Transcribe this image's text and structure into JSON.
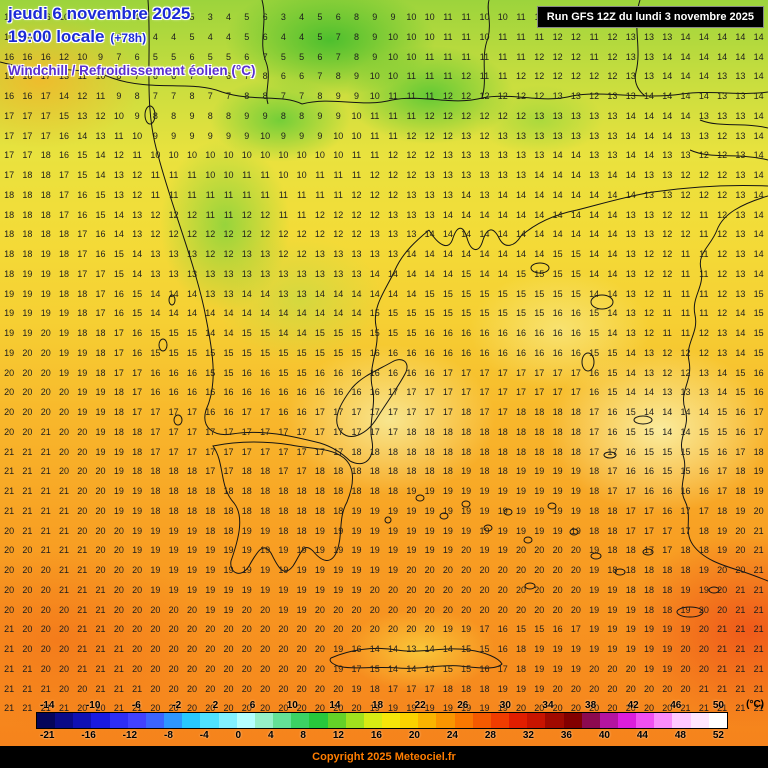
{
  "header": {
    "date_line": "jeudi 6 novembre 2025",
    "time_line": "19:00 locale",
    "run_offset": "(+78h)",
    "param_label": "Windchill / Refroidissement éolien (°C)"
  },
  "run_box": {
    "text": "Run GFS 12Z du lundi 3 novembre 2025"
  },
  "footer": {
    "copyright": "Copyright 2025 Meteociel.fr"
  },
  "color_scale": {
    "unit": "(°C)",
    "top_labels": [
      "-14",
      "-10",
      "-6",
      "-2",
      "2",
      "6",
      "10",
      "14",
      "18",
      "22",
      "26",
      "30",
      "34",
      "38",
      "42",
      "46",
      "50"
    ],
    "bottom_labels": [
      "-21",
      "-16",
      "-12",
      "-8",
      "-4",
      "0",
      "4",
      "8",
      "12",
      "16",
      "20",
      "24",
      "28",
      "32",
      "36",
      "40",
      "44",
      "48",
      "52"
    ],
    "colors": [
      "#05055a",
      "#0a0a87",
      "#1010b4",
      "#1a1ae1",
      "#2e2ef5",
      "#4242ff",
      "#3c64ff",
      "#2e96ff",
      "#28c8ff",
      "#50e1ff",
      "#82f0ff",
      "#b4ffff",
      "#96f0c8",
      "#64e196",
      "#3cd264",
      "#28c83c",
      "#64d228",
      "#a0e11e",
      "#d7eb14",
      "#f5e60a",
      "#fad200",
      "#fab400",
      "#fa9600",
      "#fa7800",
      "#f55a00",
      "#f03c00",
      "#e11e00",
      "#c81400",
      "#a00a00",
      "#820000",
      "#8c0a50",
      "#b414a0",
      "#dc1edc",
      "#f050f0",
      "#fa8cfa",
      "#ffc8ff",
      "#ffe6ff",
      "#ffffff"
    ]
  },
  "chart_data": {
    "type": "heatmap",
    "title": "Windchill / Refroidissement éolien (°C)",
    "unit": "°C",
    "scale_range": [
      -21,
      52
    ]
  },
  "grid": {
    "rows": [
      "16 16 16 10 9 8 5 4 3 4 5 3 4 5 6 3 4 5 6 8 9 9 10 10 11 11 10 10 11 11 12 12 10 12 13 13 13 14 14 14 14 14",
      "16 16 16 11 9 8 6 5 4 4 5 4 4 5 6 4 4 5 7 8 9 10 10 10 11 11 10 11 11 11 12 12 11 12 13 13 13 14 14 14 14 14",
      "16 16 16 12 10 9 7 6 5 5 6 5 5 6 7 5 5 6 7 8 9 10 10 11 11 11 11 11 11 12 12 12 11 12 13 13 14 14 14 14 14 14",
      "16 16 17 13 11 10 8 7 6 6 7 6 6 7 8 6 6 7 8 9 10 10 11 11 11 12 11 11 12 12 12 12 12 12 13 13 14 14 14 13 13 14",
      "16 16 17 14 12 11 9 8 7 7 8 7 7 8 8 7 7 8 9 9 10 11 11 11 12 12 12 12 12 12 13 13 12 13 13 14 14 14 14 13 13 14",
      "17 17 17 15 13 12 10 9 8 8 9 8 8 9 9 8 8 9 9 10 11 11 11 12 12 12 12 12 12 13 13 13 13 13 14 14 14 14 13 13 13 14",
      "17 17 17 16 14 13 11 10 9 9 9 9 9 9 10 9 9 9 10 10 11 11 12 12 12 13 12 13 13 13 13 13 13 13 14 14 14 13 13 12 13 14",
      "17 17 18 16 15 14 12 11 10 10 10 10 10 10 10 10 10 10 10 11 11 12 12 12 13 13 13 13 13 13 14 14 13 13 14 14 13 13 12 12 13 14",
      "17 18 18 17 15 14 13 12 11 11 11 10 10 11 11 10 10 11 11 11 12 12 12 13 13 13 13 13 13 14 14 14 13 14 14 13 13 12 12 12 13 14",
      "18 18 18 17 16 15 13 12 11 11 11 11 11 11 11 11 11 11 11 12 12 12 13 13 13 14 13 14 14 14 14 14 14 14 14 13 13 12 12 12 13 14",
      "18 18 18 17 16 15 14 13 12 12 12 11 11 12 12 11 11 12 12 12 12 13 13 13 14 14 14 14 14 14 14 14 14 14 13 13 12 12 11 12 13 14",
      "18 18 18 18 17 16 14 13 12 12 12 12 12 12 12 12 12 12 12 12 13 13 13 14 14 14 14 14 14 14 14 14 14 14 13 13 12 12 11 12 13 14",
      "18 18 19 18 17 16 15 14 13 13 13 12 12 13 13 12 12 13 13 13 13 13 14 14 14 14 14 14 14 14 15 15 14 14 13 12 12 11 11 12 13 14",
      "18 19 19 18 17 17 15 14 13 13 13 13 13 13 13 13 13 13 13 13 14 14 14 14 14 15 14 14 15 15 15 15 14 14 13 12 12 11 11 12 13 14",
      "19 19 19 18 18 17 16 15 14 14 14 13 13 14 14 13 13 14 14 14 14 14 14 15 15 15 15 15 15 15 15 15 14 14 13 12 11 11 11 12 13 15",
      "19 19 19 19 18 17 16 15 14 14 14 14 14 14 14 14 14 14 14 14 15 15 15 15 15 15 15 15 15 15 16 16 15 14 13 12 11 11 11 12 14 15",
      "19 19 20 19 18 18 17 16 15 15 15 14 14 15 15 14 14 15 15 15 15 15 15 16 16 16 16 16 16 16 16 16 15 14 13 12 11 11 12 13 14 15",
      "19 20 20 19 19 18 17 16 15 15 15 15 15 15 15 15 15 15 15 15 16 16 16 16 16 16 16 16 16 16 16 16 15 15 14 13 12 12 12 13 14 15",
      "20 20 20 19 19 18 17 17 16 16 16 15 15 16 16 15 15 16 16 16 16 16 16 16 17 17 17 17 17 17 17 17 16 15 14 13 12 12 13 14 15 16",
      "20 20 20 20 19 19 18 17 16 16 16 16 16 16 16 16 16 16 16 16 16 17 17 17 17 17 17 17 17 17 17 17 16 15 14 14 13 13 13 14 15 16",
      "20 20 20 20 19 19 18 17 17 17 17 16 16 17 17 16 16 17 17 17 17 17 17 17 17 18 17 17 18 18 18 18 17 16 15 14 14 14 14 15 16 17",
      "20 20 21 20 20 19 18 18 17 17 17 17 17 17 17 17 17 17 17 17 17 17 18 18 18 18 18 18 18 18 18 18 17 16 15 15 14 14 15 15 16 17",
      "21 21 21 20 20 19 19 18 17 17 17 17 17 17 17 17 17 17 17 18 18 18 18 18 18 18 18 18 18 18 18 18 17 17 16 15 15 15 15 16 17 18",
      "21 21 21 20 20 20 19 18 18 18 18 17 17 18 18 17 17 18 18 18 18 18 18 18 18 19 18 18 19 19 19 19 18 17 16 16 15 15 16 17 18 19",
      "21 21 21 21 20 20 19 19 18 18 18 18 18 18 18 18 18 18 18 18 18 18 19 19 19 19 19 19 19 19 19 19 18 17 17 16 16 16 16 17 18 19",
      "21 21 21 21 20 20 19 19 18 18 18 18 18 18 18 18 18 18 18 19 19 19 19 19 19 19 19 19 19 19 19 19 18 18 17 17 16 17 17 18 19 20",
      "20 21 21 21 20 20 20 19 19 19 19 18 18 19 19 18 18 19 19 19 19 19 19 19 19 19 19 19 19 19 19 19 18 18 17 17 17 17 18 19 20 21",
      "20 20 21 21 21 20 20 19 19 19 19 19 19 19 19 19 19 19 19 19 19 19 19 19 19 20 19 19 20 20 20 20 19 18 18 17 17 18 18 19 20 21",
      "20 20 20 21 21 20 20 20 19 19 19 19 19 19 19 19 19 19 19 19 19 19 20 20 20 20 20 20 20 20 20 20 19 18 18 18 18 18 19 20 20 21",
      "20 20 20 21 21 21 20 20 19 19 19 19 19 19 19 19 19 19 19 19 20 20 20 20 20 20 20 20 20 20 20 20 19 19 18 18 18 19 19 20 21 21",
      "20 20 20 20 21 21 20 20 20 20 20 19 19 20 20 19 19 20 20 20 20 20 20 20 20 20 20 20 20 20 20 20 19 19 19 18 18 19 20 20 21 21",
      "21 20 20 20 21 21 20 20 20 20 20 20 20 20 20 20 20 20 20 20 20 20 20 20 19 19 17 16 15 15 16 17 19 19 19 19 19 19 20 21 21 21",
      "21 20 20 20 21 21 21 20 20 20 20 20 20 20 20 20 20 20 19 16 14 14 13 14 14 15 15 16 18 19 19 19 19 19 19 19 19 20 20 21 21 21",
      "21 21 20 20 21 21 21 20 20 20 20 20 20 20 20 20 20 20 19 17 15 14 14 14 15 15 16 17 18 19 19 19 20 20 20 19 19 20 20 21 21 21",
      "21 21 21 20 20 21 21 21 20 20 20 20 20 20 20 20 20 20 20 19 18 17 17 17 18 18 18 19 19 19 20 20 20 20 20 20 20 20 21 21 21 21",
      "21 21 21 21 20 20 21 21 20 20 20 20 20 20 20 20 20 20 20 20 19 19 19 19 19 19 19 19 20 20 20 20 20 20 20 20 20 21 21 21 21 21"
    ]
  }
}
